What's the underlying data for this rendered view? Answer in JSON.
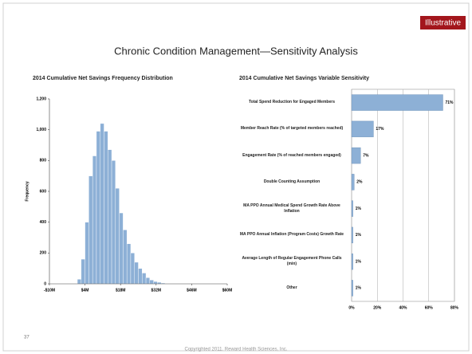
{
  "slide": {
    "badge": "Illustrative",
    "title": "Chronic Condition Management—Sensitivity Analysis",
    "page_number": 37,
    "copyright": "Copyrighted 2011. Reward Health Sciences, Inc."
  },
  "chart_data": [
    {
      "type": "histogram",
      "title": "2014 Cumulative Net Savings Frequency Distribution",
      "y_label": "Frequency",
      "color": "#8db0d6",
      "bins": [
        1,
        2.5,
        4,
        5.5,
        7,
        8.5,
        10,
        11.5,
        13,
        14.5,
        16,
        17.5,
        19,
        20.5,
        22,
        23.5,
        25,
        26.5,
        28,
        29.5,
        31,
        32.5,
        34,
        35.5
      ],
      "values": [
        30,
        160,
        400,
        700,
        830,
        990,
        1040,
        990,
        870,
        800,
        620,
        460,
        350,
        260,
        200,
        140,
        100,
        70,
        40,
        25,
        15,
        10,
        5
      ],
      "xlim": [
        -10,
        60
      ],
      "xticks": [
        {
          "value": -10,
          "label": "-$10M"
        },
        {
          "value": 4,
          "label": "$4M"
        },
        {
          "value": 18,
          "label": "$18M"
        },
        {
          "value": 32,
          "label": "$32M"
        },
        {
          "value": 46,
          "label": "$46M"
        },
        {
          "value": 60,
          "label": "$60M"
        }
      ],
      "ylim": [
        0,
        1200
      ],
      "yticks": [
        0,
        200,
        400,
        600,
        800,
        {
          "value": 1000,
          "label": "1,000"
        },
        {
          "value": 1200,
          "label": "1,200"
        }
      ]
    },
    {
      "type": "hbar",
      "title": "2014 Cumulative Net Savings Variable Sensitivity",
      "color": "#8db0d6",
      "grid": true,
      "categories": [
        "Total Spend Reduction for Engaged Members",
        "Member Reach Rate (% of targeted members reached)",
        "Engagement Rate (% of reached members engaged)",
        "Double Counting Assumption",
        "MA PPO Annual Medical Spend Growth Rate Above Inflation",
        "MA PPO Annual Inflation (Program Costs) Growth Rate",
        "Average Length of Regular Engagement Phone Calls (min)",
        "Other"
      ],
      "values": [
        71,
        17,
        7,
        2,
        1,
        1,
        1,
        1
      ],
      "value_labels": [
        "71%",
        "17%",
        "7%",
        "2%",
        "1%",
        "1%",
        "1%",
        "1%"
      ],
      "xlim": [
        0,
        80
      ],
      "xticks": [
        {
          "value": 0,
          "label": "0%"
        },
        {
          "value": 20,
          "label": "20%"
        },
        {
          "value": 40,
          "label": "40%"
        },
        {
          "value": 60,
          "label": "60%"
        },
        {
          "value": 80,
          "label": "80%"
        }
      ]
    }
  ]
}
